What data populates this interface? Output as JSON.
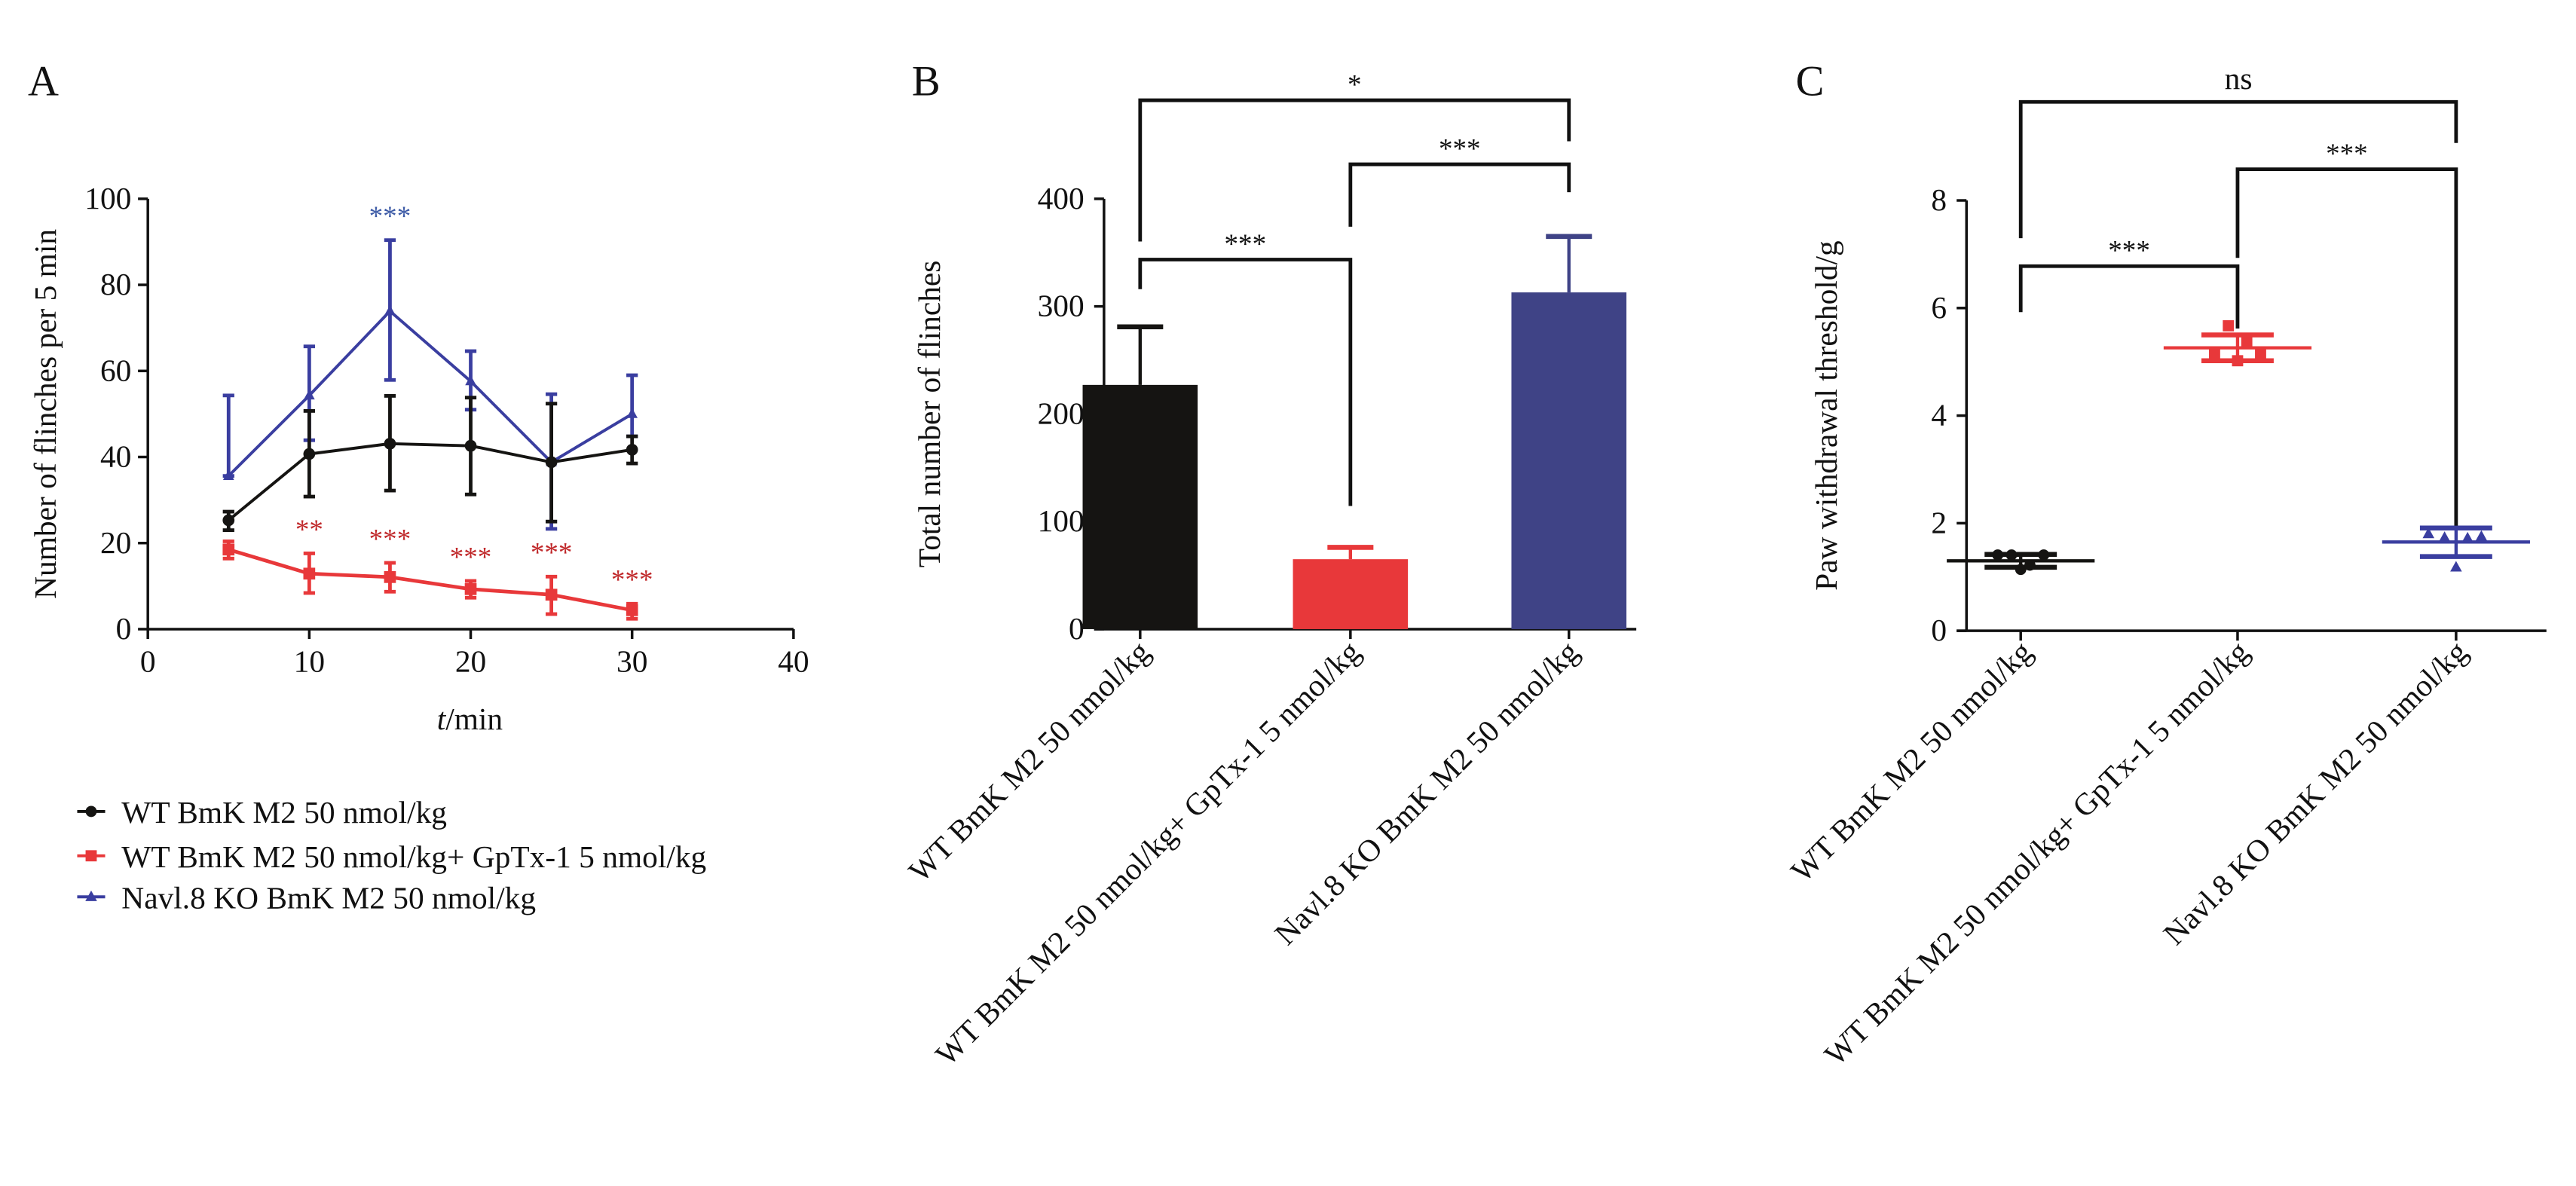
{
  "colors": {
    "black": "#151412",
    "red": "#e8383a",
    "blue": "#3f4386",
    "blue_line": "#3a3ea0",
    "sig_red": "#c0282a",
    "sig_blue": "#3c5aa6"
  },
  "legend": {
    "items": [
      {
        "label": "WT BmK M2 50 nmol/kg",
        "color_key": "black",
        "marker": "circle"
      },
      {
        "label": "WT BmK M2 50 nmol/kg+ GpTx-1 5 nmol/kg",
        "color_key": "red",
        "marker": "square"
      },
      {
        "label": "Navl.8 KO BmK M2 50 nmol/kg",
        "color_key": "blue_line",
        "marker": "triangle"
      }
    ]
  },
  "chart_data": [
    {
      "panel": "A",
      "type": "line",
      "xlabel_italic": "t",
      "xlabel_rest": "/min",
      "ylabel": "Number of flinches per 5 min",
      "xlim": [
        0,
        40
      ],
      "ylim": [
        0,
        100
      ],
      "xticks": [
        0,
        10,
        20,
        30,
        40
      ],
      "yticks": [
        0,
        20,
        40,
        60,
        80,
        100
      ],
      "x": [
        5,
        10,
        15,
        20,
        25,
        30
      ],
      "series": [
        {
          "name": "WT BmK M2 50 nmol/kg",
          "color_key": "black",
          "marker": "circle",
          "values": [
            25.3,
            40.7,
            43.1,
            42.6,
            38.8,
            41.7
          ],
          "err_upper": [
            27.3,
            50.7,
            54.2,
            53.8,
            52.4,
            44.8
          ],
          "err_lower": [
            23.0,
            30.8,
            32.2,
            31.3,
            25.0,
            38.5
          ],
          "significance": [
            "",
            "",
            "",
            "",
            "",
            ""
          ]
        },
        {
          "name": "WT BmK M2 50 nmol/kg+ GpTx-1 5 nmol/kg",
          "color_key": "red",
          "marker": "square",
          "values": [
            18.5,
            12.9,
            12.1,
            9.3,
            8.0,
            4.4
          ],
          "err_upper": [
            20.4,
            17.6,
            15.4,
            11.2,
            12.2,
            5.9
          ],
          "err_lower": [
            16.4,
            8.4,
            8.7,
            7.3,
            3.5,
            2.4
          ],
          "significance": [
            "",
            "**",
            "***",
            "***",
            "***",
            "***"
          ],
          "sig_color_key": "sig_red"
        },
        {
          "name": "Navl.8 KO BmK M2 50 nmol/kg",
          "color_key": "blue_line",
          "marker": "triangle",
          "values": [
            35.6,
            54.3,
            73.9,
            57.6,
            38.8,
            50.0
          ],
          "err_upper": [
            54.3,
            65.7,
            90.4,
            64.6,
            54.6,
            59.0
          ],
          "err_lower": [
            35.6,
            43.9,
            57.9,
            51.0,
            23.3,
            44.8
          ],
          "significance": [
            "",
            "",
            "***",
            "",
            "",
            ""
          ],
          "sig_color_key": "sig_blue"
        }
      ]
    },
    {
      "panel": "B",
      "type": "bar",
      "ylabel": "Total number of flinches",
      "ylim": [
        0,
        400
      ],
      "yticks": [
        0,
        100,
        200,
        300,
        400
      ],
      "categories": [
        "WT BmK M2 50 nmol/kg",
        "WT BmK M2 50 nmol/kg+ GpTx-1 5 nmol/kg",
        "Navl.8 KO BmK M2 50 nmol/kg"
      ],
      "values": [
        227,
        65,
        313
      ],
      "err_upper": [
        281,
        76,
        365
      ],
      "color_keys": [
        "black",
        "red",
        "blue"
      ],
      "comparisons": [
        {
          "from": 0,
          "to": 1,
          "label": "***"
        },
        {
          "from": 1,
          "to": 2,
          "label": "***"
        },
        {
          "from": 0,
          "to": 2,
          "label": "*"
        }
      ]
    },
    {
      "panel": "C",
      "type": "scatter",
      "ylabel": "Paw withdrawal threshold/g",
      "ylim": [
        0,
        8
      ],
      "yticks": [
        0,
        2,
        4,
        6,
        8
      ],
      "categories": [
        "WT BmK M2 50 nmol/kg",
        "WT BmK M2 50 nmol/kg+ GpTx-1 5 nmol/kg",
        "Navl.8 KO BmK M2 50 nmol/kg"
      ],
      "groups": [
        {
          "color_key": "black",
          "marker": "circle",
          "mean": 1.3,
          "sd_upper": 1.42,
          "sd_lower": 1.18,
          "points": [
            1.41,
            1.41,
            1.14,
            1.22,
            1.41
          ],
          "jitter": [
            -0.5,
            -0.2,
            0.0,
            0.2,
            0.5
          ]
        },
        {
          "color_key": "red",
          "marker": "square",
          "mean": 5.26,
          "sd_upper": 5.5,
          "sd_lower": 5.02,
          "points": [
            5.15,
            5.67,
            5.02,
            5.36,
            5.13
          ],
          "jitter": [
            -0.5,
            -0.2,
            0.0,
            0.2,
            0.5
          ]
        },
        {
          "color_key": "blue_line",
          "marker": "triangle",
          "mean": 1.65,
          "sd_upper": 1.91,
          "sd_lower": 1.38,
          "points": [
            1.8,
            1.73,
            1.18,
            1.72,
            1.75
          ],
          "jitter": [
            -0.6,
            -0.25,
            0.0,
            0.25,
            0.55
          ]
        }
      ],
      "comparisons": [
        {
          "from": 0,
          "to": 1,
          "label": "***"
        },
        {
          "from": 1,
          "to": 2,
          "label": "***"
        },
        {
          "from": 0,
          "to": 2,
          "label": "ns"
        }
      ]
    }
  ]
}
